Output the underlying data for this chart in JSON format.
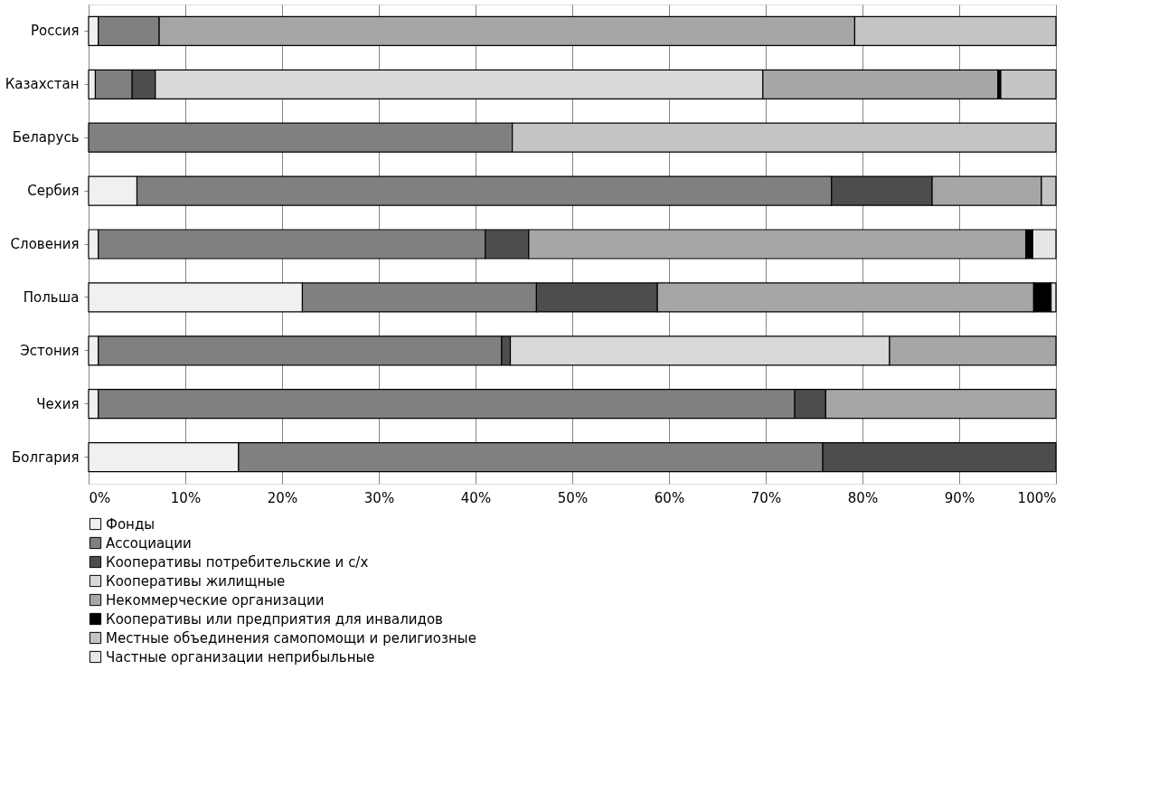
{
  "chart_data": {
    "type": "bar",
    "orientation": "horizontal",
    "stacked": true,
    "categories": [
      "Россия",
      "Казахстан",
      "Беларусь",
      "Сербия",
      "Словения",
      "Польша",
      "Эстония",
      "Чехия",
      "Болгария"
    ],
    "series": [
      {
        "name": "Фонды",
        "color": "#f0f0f0",
        "values": [
          1.0,
          0.7,
          null,
          5.0,
          1.0,
          22.1,
          1.0,
          1.0,
          15.5
        ]
      },
      {
        "name": "Ассоциации",
        "color": "#808080",
        "values": [
          6.3,
          3.8,
          43.8,
          71.8,
          40.0,
          24.2,
          41.7,
          72.0,
          60.4
        ]
      },
      {
        "name": "Кооперативы потребительские и с/х",
        "color": "#4d4d4d",
        "values": [
          null,
          2.4,
          null,
          10.4,
          4.5,
          12.5,
          0.9,
          3.2,
          24.1
        ]
      },
      {
        "name": "Кооперативы жилищные",
        "color": "#d9d9d9",
        "values": [
          null,
          62.8,
          null,
          null,
          null,
          null,
          39.2,
          null,
          null
        ]
      },
      {
        "name": "Некоммерческие организации",
        "color": "#a6a6a6",
        "values": [
          71.9,
          24.3,
          null,
          11.3,
          51.4,
          38.9,
          17.2,
          23.8,
          null
        ]
      },
      {
        "name": "Кооперативы или предприятия  для инвалидов",
        "color": "#000000",
        "values": [
          null,
          0.3,
          null,
          null,
          0.7,
          1.8,
          null,
          null,
          null
        ]
      },
      {
        "name": "Местные  объединения самопомощи и религиозные",
        "color": "#c4c4c4",
        "values": [
          20.8,
          5.7,
          56.2,
          1.5,
          null,
          null,
          null,
          null,
          null
        ]
      },
      {
        "name": "Частные организации неприбыльные",
        "color": "#e6e6e6",
        "values": [
          null,
          null,
          null,
          null,
          2.4,
          0.5,
          null,
          null,
          null
        ]
      }
    ],
    "xlim": [
      0,
      100
    ],
    "xticks": [
      {
        "value": 0,
        "label": "0%"
      },
      {
        "value": 10,
        "label": "10%"
      },
      {
        "value": 20,
        "label": "20%"
      },
      {
        "value": 30,
        "label": "30%"
      },
      {
        "value": 40,
        "label": "40%"
      },
      {
        "value": 50,
        "label": "50%"
      },
      {
        "value": 60,
        "label": "60%"
      },
      {
        "value": 70,
        "label": "70%"
      },
      {
        "value": 80,
        "label": "80%"
      },
      {
        "value": 90,
        "label": "90%"
      },
      {
        "value": 100,
        "label": "100%"
      }
    ],
    "grid": "x",
    "legend": "bottom"
  }
}
